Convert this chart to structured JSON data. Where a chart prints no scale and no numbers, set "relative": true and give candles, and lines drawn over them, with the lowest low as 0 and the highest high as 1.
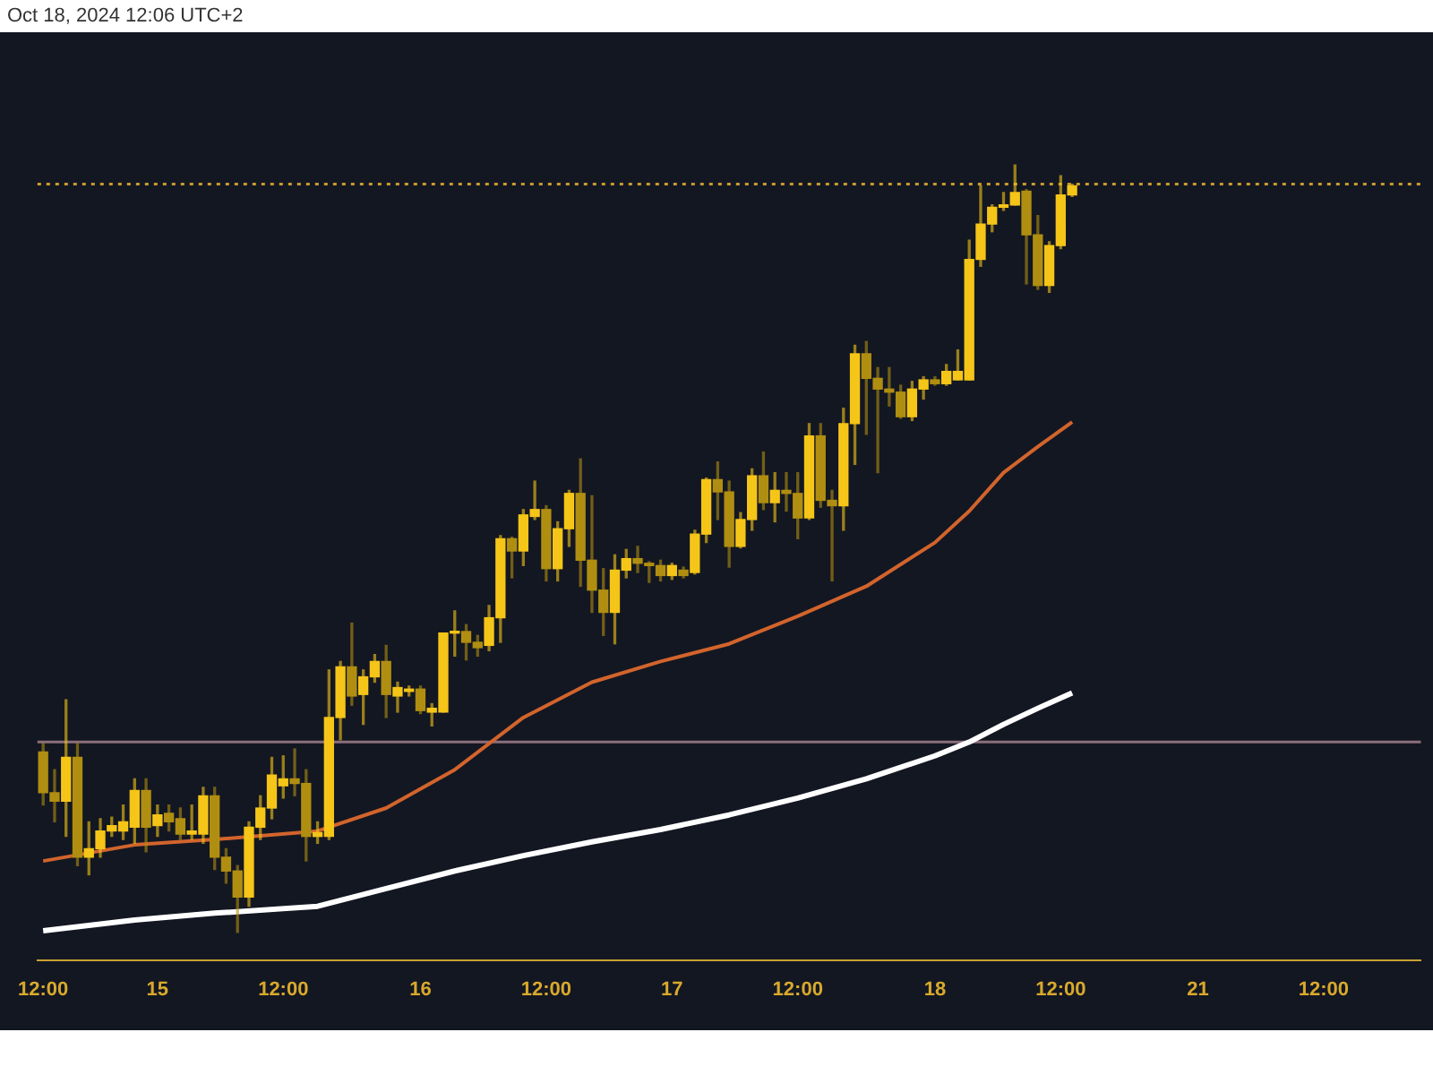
{
  "chart_data": {
    "type": "candlestick",
    "relative": true,
    "annotations": [
      "Oct 18, 2024 12:06 UTC+2"
    ],
    "categories": [
      "12:00",
      null,
      null,
      null,
      null,
      null,
      null,
      null,
      null,
      null,
      "15",
      null,
      null,
      null,
      null,
      null,
      null,
      null,
      null,
      null,
      null,
      "12:00",
      null,
      null,
      null,
      null,
      null,
      null,
      null,
      null,
      null,
      null,
      null,
      "16",
      null,
      null,
      null,
      null,
      null,
      null,
      null,
      null,
      null,
      null,
      "12:00",
      null,
      null,
      null,
      null,
      null,
      null,
      null,
      null,
      null,
      null,
      "17",
      null,
      null,
      null,
      null,
      null,
      null,
      null,
      null,
      null,
      null,
      "12:00",
      null,
      null,
      null,
      null,
      null,
      null,
      null,
      null,
      null,
      null,
      null,
      "18",
      null,
      null,
      null,
      null,
      null,
      null,
      null,
      null,
      null,
      null,
      "12:00",
      null,
      null,
      null,
      null,
      null,
      null,
      null,
      null,
      null,
      null,
      null,
      "21",
      null,
      null,
      null,
      null,
      null,
      null,
      null,
      null,
      null,
      null,
      "12:00",
      null,
      null,
      null,
      null,
      null,
      null,
      null,
      null
    ],
    "colors": [
      "#b08e11",
      "#b08e11",
      "#f5c518",
      "#b08e11",
      "#f5c518",
      "#f5c518",
      "#f5c518",
      "#f5c518",
      "#f5c518",
      "#b08e11",
      "#f5c518",
      "#b08e11",
      "#b08e11",
      "#f5c518",
      "#f5c518",
      "#b08e11",
      "#b08e11",
      "#b08e11",
      "#f5c518",
      "#f5c518",
      "#f5c518",
      "#f5c518",
      "#b08e11",
      "#b08e11",
      "#f5c518",
      "#f5c518",
      "#f5c518",
      "#b08e11",
      "#f5c518",
      "#f5c518",
      "#b08e11",
      "#f5c518",
      "#f5c518",
      "#b08e11",
      "#f5c518",
      "#f5c518",
      "#f5c518",
      "#b08e11",
      "#b08e11",
      "#f5c518",
      "#f5c518",
      "#b08e11",
      "#f5c518",
      "#f5c518",
      "#b08e11",
      "#f5c518",
      "#f5c518",
      "#b08e11",
      "#b08e11",
      "#b08e11",
      "#f5c518",
      "#f5c518",
      "#b08e11",
      "#b08e11",
      "#b08e11",
      "#f5c518",
      "#b08e11",
      "#f5c518",
      "#f5c518",
      "#b08e11",
      "#b08e11",
      "#f5c518",
      "#f5c518",
      "#b08e11",
      "#f5c518",
      "#b08e11",
      "#b08e11",
      "#f5c518",
      "#b08e11",
      "#b08e11",
      "#f5c518",
      "#f5c518",
      "#b08e11",
      "#b08e11",
      "#b08e11",
      "#b08e11",
      "#f5c518",
      "#f5c518",
      "#b08e11",
      "#f5c518",
      "#f5c518",
      "#f5c518",
      "#f5c518",
      "#f5c518",
      "#f5c518",
      "#f5c518",
      "#b08e11",
      "#b08e11",
      "#f5c518",
      "#f5c518",
      "#f5c518",
      null,
      null,
      null,
      null,
      null,
      null,
      null,
      null,
      null,
      null,
      null,
      null,
      null,
      null,
      null,
      null,
      null,
      null,
      null,
      null,
      null,
      null,
      null,
      null,
      null,
      null,
      null,
      null,
      null,
      null
    ],
    "ohlc": [
      [
        0.235,
        0.246,
        0.166,
        0.182
      ],
      [
        0.182,
        0.212,
        0.144,
        0.171
      ],
      [
        0.171,
        0.303,
        0.125,
        0.228
      ],
      [
        0.228,
        0.246,
        0.087,
        0.098
      ],
      [
        0.098,
        0.144,
        0.075,
        0.109
      ],
      [
        0.109,
        0.148,
        0.098,
        0.132
      ],
      [
        0.132,
        0.15,
        0.125,
        0.139
      ],
      [
        0.132,
        0.166,
        0.121,
        0.144
      ],
      [
        0.137,
        0.2,
        0.116,
        0.185
      ],
      [
        0.185,
        0.2,
        0.105,
        0.137
      ],
      [
        0.139,
        0.166,
        0.125,
        0.153
      ],
      [
        0.155,
        0.166,
        0.132,
        0.144
      ],
      [
        0.148,
        0.162,
        0.121,
        0.128
      ],
      [
        0.128,
        0.166,
        0.121,
        0.132
      ],
      [
        0.128,
        0.189,
        0.116,
        0.178
      ],
      [
        0.178,
        0.189,
        0.082,
        0.098
      ],
      [
        0.098,
        0.109,
        0.064,
        0.08
      ],
      [
        0.08,
        0.087,
        0,
        0.046
      ],
      [
        0.046,
        0.144,
        0.034,
        0.137
      ],
      [
        0.137,
        0.178,
        0.121,
        0.162
      ],
      [
        0.162,
        0.228,
        0.148,
        0.205
      ],
      [
        0.191,
        0.23,
        0.175,
        0.2
      ],
      [
        0.2,
        0.239,
        0.178,
        0.194
      ],
      [
        0.194,
        0.212,
        0.093,
        0.125
      ],
      [
        0.125,
        0.144,
        0.116,
        0.13
      ],
      [
        0.125,
        0.342,
        0.121,
        0.28
      ],
      [
        0.28,
        0.353,
        0.251,
        0.346
      ],
      [
        0.346,
        0.403,
        0.296,
        0.308
      ],
      [
        0.31,
        0.342,
        0.271,
        0.333
      ],
      [
        0.333,
        0.362,
        0.326,
        0.353
      ],
      [
        0.353,
        0.374,
        0.28,
        0.31
      ],
      [
        0.308,
        0.326,
        0.287,
        0.319
      ],
      [
        0.314,
        0.321,
        0.308,
        0.317
      ],
      [
        0.317,
        0.321,
        0.285,
        0.289
      ],
      [
        0.287,
        0.298,
        0.269,
        0.292
      ],
      [
        0.287,
        0.39,
        0.287,
        0.39
      ],
      [
        0.39,
        0.419,
        0.36,
        0.392
      ],
      [
        0.392,
        0.401,
        0.355,
        0.378
      ],
      [
        0.378,
        0.387,
        0.36,
        0.371
      ],
      [
        0.374,
        0.426,
        0.367,
        0.41
      ],
      [
        0.41,
        0.517,
        0.378,
        0.513
      ],
      [
        0.513,
        0.515,
        0.462,
        0.497
      ],
      [
        0.497,
        0.551,
        0.478,
        0.544
      ],
      [
        0.542,
        0.588,
        0.538,
        0.551
      ],
      [
        0.551,
        0.556,
        0.458,
        0.474
      ],
      [
        0.474,
        0.535,
        0.458,
        0.526
      ],
      [
        0.526,
        0.576,
        0.503,
        0.572
      ],
      [
        0.572,
        0.617,
        0.451,
        0.485
      ],
      [
        0.485,
        0.569,
        0.417,
        0.446
      ],
      [
        0.446,
        0.474,
        0.387,
        0.417
      ],
      [
        0.417,
        0.492,
        0.376,
        0.472
      ],
      [
        0.472,
        0.499,
        0.462,
        0.487
      ],
      [
        0.487,
        0.503,
        0.469,
        0.481
      ],
      [
        0.481,
        0.483,
        0.456,
        0.478
      ],
      [
        0.478,
        0.485,
        0.458,
        0.465
      ],
      [
        0.465,
        0.481,
        0.46,
        0.478
      ],
      [
        0.472,
        0.476,
        0.462,
        0.465
      ],
      [
        0.469,
        0.524,
        0.467,
        0.519
      ],
      [
        0.519,
        0.592,
        0.508,
        0.59
      ],
      [
        0.59,
        0.613,
        0.538,
        0.574
      ],
      [
        0.574,
        0.588,
        0.476,
        0.503
      ],
      [
        0.503,
        0.547,
        0.501,
        0.538
      ],
      [
        0.538,
        0.604,
        0.524,
        0.595
      ],
      [
        0.595,
        0.626,
        0.551,
        0.56
      ],
      [
        0.56,
        0.599,
        0.535,
        0.576
      ],
      [
        0.576,
        0.599,
        0.549,
        0.572
      ],
      [
        0.572,
        0.599,
        0.513,
        0.54
      ],
      [
        0.54,
        0.663,
        0.538,
        0.647
      ],
      [
        0.647,
        0.663,
        0.554,
        0.563
      ],
      [
        0.563,
        0.576,
        0.458,
        0.556
      ],
      [
        0.556,
        0.683,
        0.524,
        0.663
      ],
      [
        0.663,
        0.765,
        0.61,
        0.754
      ],
      [
        0.754,
        0.77,
        0.649,
        0.722
      ],
      [
        0.722,
        0.736,
        0.599,
        0.708
      ],
      [
        0.708,
        0.736,
        0.686,
        0.704
      ],
      [
        0.704,
        0.713,
        0.67,
        0.672
      ],
      [
        0.672,
        0.718,
        0.667,
        0.708
      ],
      [
        0.708,
        0.724,
        0.695,
        0.72
      ],
      [
        0.72,
        0.724,
        0.713,
        0.715
      ],
      [
        0.715,
        0.74,
        0.713,
        0.731
      ],
      [
        0.72,
        0.759,
        0.72,
        0.731
      ],
      [
        0.72,
        0.902,
        0.72,
        0.877
      ],
      [
        0.877,
        0.973,
        0.868,
        0.923
      ],
      [
        0.923,
        0.948,
        0.913,
        0.945
      ],
      [
        0.945,
        0.964,
        0.941,
        0.948
      ],
      [
        0.948,
        1,
        0.948,
        0.964
      ],
      [
        0.966,
        0.968,
        0.845,
        0.909
      ],
      [
        0.909,
        0.934,
        0.838,
        0.843
      ],
      [
        0.843,
        0.9,
        0.834,
        0.895
      ],
      [
        0.895,
        0.986,
        0.891,
        0.961
      ],
      [
        0.961,
        0.975,
        0.959,
        0.973
      ],
      null,
      null,
      null,
      null,
      null,
      null,
      null,
      null,
      null,
      null,
      null,
      null,
      null,
      null,
      null,
      null,
      null,
      null,
      null,
      null,
      null,
      null,
      null,
      null,
      null,
      null,
      null,
      null,
      null,
      null
    ],
    "series": [
      {
        "type": "line",
        "color": "#d2642c",
        "values": [
          0.093,
          null,
          null,
          null,
          null,
          null,
          null,
          null,
          0.114,
          null,
          null,
          null,
          null,
          null,
          null,
          0.121,
          null,
          null,
          null,
          null,
          null,
          null,
          null,
          null,
          0.132,
          null,
          null,
          null,
          null,
          null,
          0.162,
          null,
          null,
          null,
          null,
          null,
          0.212,
          null,
          null,
          null,
          null,
          null,
          0.28,
          null,
          null,
          null,
          null,
          null,
          0.326,
          null,
          null,
          null,
          null,
          null,
          0.353,
          null,
          null,
          null,
          null,
          null,
          0.376,
          null,
          null,
          null,
          null,
          null,
          0.412,
          null,
          null,
          null,
          null,
          null,
          0.451,
          null,
          null,
          null,
          null,
          null,
          0.508,
          null,
          null,
          0.549,
          null,
          null,
          0.599,
          null,
          null,
          0.633,
          null,
          null,
          0.665,
          null,
          null,
          null,
          null,
          null,
          null,
          null,
          null,
          null,
          null,
          null,
          null,
          null,
          null,
          null,
          null,
          null,
          null,
          null,
          null,
          null,
          null,
          null,
          null,
          null,
          null,
          null,
          null,
          null,
          null
        ]
      },
      {
        "type": "line",
        "color": "#ffffff",
        "values": [
          0.002,
          null,
          null,
          null,
          null,
          null,
          null,
          null,
          0.016,
          null,
          null,
          null,
          null,
          null,
          null,
          0.025,
          null,
          null,
          null,
          null,
          null,
          null,
          null,
          null,
          0.034,
          null,
          null,
          null,
          null,
          null,
          0.057,
          null,
          null,
          null,
          null,
          null,
          0.08,
          null,
          null,
          null,
          null,
          null,
          0.1,
          null,
          null,
          null,
          null,
          null,
          0.118,
          null,
          null,
          null,
          null,
          null,
          0.134,
          null,
          null,
          null,
          null,
          null,
          0.153,
          null,
          null,
          null,
          null,
          null,
          0.175,
          null,
          null,
          null,
          null,
          null,
          0.2,
          null,
          null,
          null,
          null,
          null,
          0.23,
          null,
          null,
          0.248,
          null,
          null,
          0.271,
          null,
          null,
          0.292,
          null,
          null,
          0.312,
          null,
          null,
          null,
          null,
          null,
          null,
          null,
          null,
          null,
          null,
          null,
          null,
          null,
          null,
          null,
          null,
          null,
          null,
          null,
          null,
          null,
          null,
          null,
          null,
          null,
          null,
          null,
          null,
          null,
          null
        ]
      }
    ],
    "ref_lines": [
      {
        "axis": "y",
        "value": 0.248,
        "color": "#8c6f7c"
      },
      {
        "axis": "y",
        "value": 0.975,
        "color": "#c99a2e",
        "line_style": "dotted"
      }
    ],
    "marker": "none",
    "legend": false
  }
}
